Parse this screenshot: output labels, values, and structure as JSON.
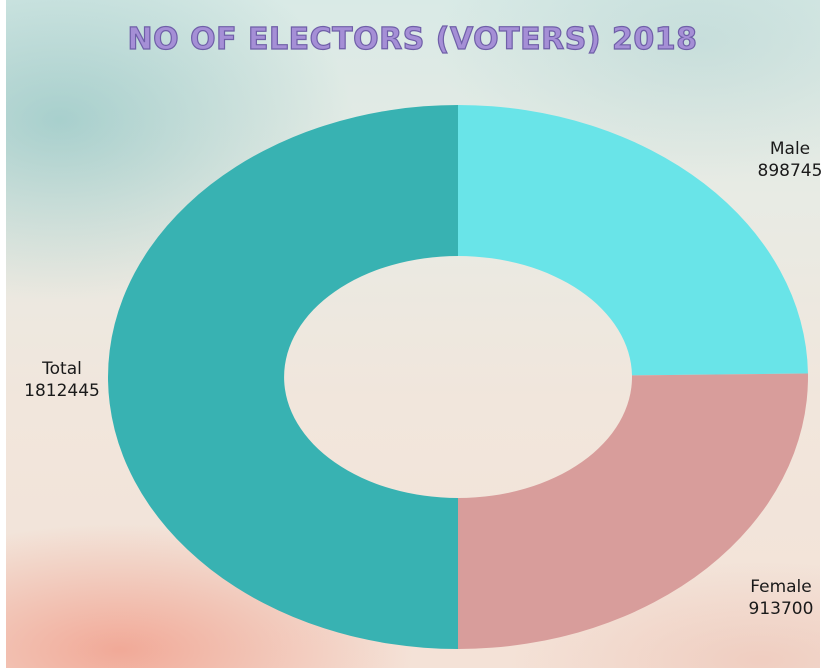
{
  "chart_data": {
    "type": "pie",
    "variant": "donut",
    "title": "NO OF ELECTORS (VOTERS) 2018",
    "slices": [
      {
        "label": "Male",
        "value": 898745,
        "color": "#69e4e8"
      },
      {
        "label": "Female",
        "value": 913700,
        "color": "#d89d9b"
      },
      {
        "label": "Total",
        "value": 1812445,
        "color": "#38b2b2"
      }
    ],
    "legend": "none",
    "data_labels": "outside"
  }
}
